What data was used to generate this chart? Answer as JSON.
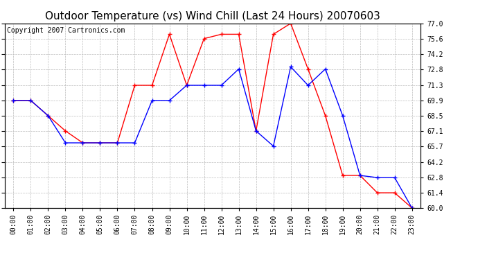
{
  "title": "Outdoor Temperature (vs) Wind Chill (Last 24 Hours) 20070603",
  "copyright_text": "Copyright 2007 Cartronics.com",
  "hours": [
    "00:00",
    "01:00",
    "02:00",
    "03:00",
    "04:00",
    "05:00",
    "06:00",
    "07:00",
    "08:00",
    "09:00",
    "10:00",
    "11:00",
    "12:00",
    "13:00",
    "14:00",
    "15:00",
    "16:00",
    "17:00",
    "18:00",
    "19:00",
    "20:00",
    "21:00",
    "22:00",
    "23:00"
  ],
  "outdoor_temp": [
    69.9,
    69.9,
    68.5,
    67.1,
    66.0,
    66.0,
    66.0,
    71.3,
    71.3,
    76.0,
    71.3,
    75.6,
    76.0,
    76.0,
    67.1,
    76.0,
    77.0,
    72.8,
    68.5,
    63.0,
    63.0,
    61.4,
    61.4,
    60.0
  ],
  "wind_chill": [
    69.9,
    69.9,
    68.5,
    66.0,
    66.0,
    66.0,
    66.0,
    66.0,
    69.9,
    69.9,
    71.3,
    71.3,
    71.3,
    72.8,
    67.1,
    65.7,
    73.0,
    71.3,
    72.8,
    68.5,
    63.0,
    62.8,
    62.8,
    60.0
  ],
  "temp_color": "#ff0000",
  "wind_color": "#0000ff",
  "ylim_min": 60.0,
  "ylim_max": 77.0,
  "yticks": [
    60.0,
    61.4,
    62.8,
    64.2,
    65.7,
    67.1,
    68.5,
    69.9,
    71.3,
    72.8,
    74.2,
    75.6,
    77.0
  ],
  "background_color": "#ffffff",
  "grid_color": "#bbbbbb",
  "title_fontsize": 11,
  "copyright_fontsize": 7,
  "tick_fontsize": 7
}
